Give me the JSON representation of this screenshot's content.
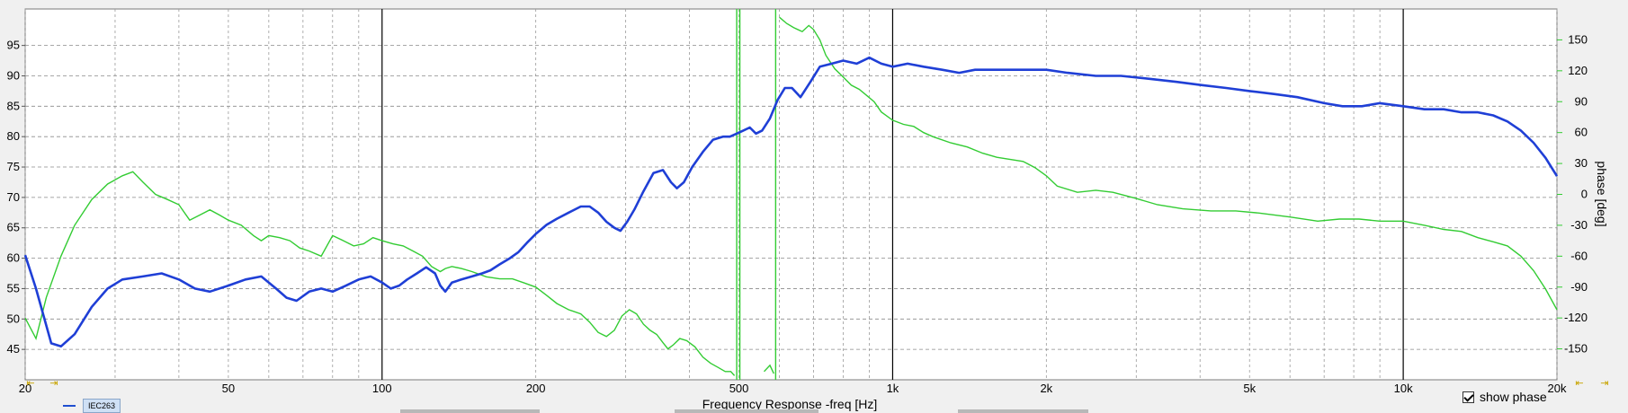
{
  "chart_data": {
    "type": "line",
    "xscale": "log",
    "xlim": [
      20,
      20000
    ],
    "ylim_left": [
      40,
      101
    ],
    "ylim_right": [
      -180,
      180
    ],
    "grid": true,
    "xlabel": "Frequency Response -freq [Hz]",
    "ylabel_right": "phase [deg]",
    "x_ticks": [
      {
        "value": 20,
        "label": "20"
      },
      {
        "value": 50,
        "label": "50"
      },
      {
        "value": 100,
        "label": "100"
      },
      {
        "value": 200,
        "label": "200"
      },
      {
        "value": 500,
        "label": "500"
      },
      {
        "value": 1000,
        "label": "1k"
      },
      {
        "value": 2000,
        "label": "2k"
      },
      {
        "value": 5000,
        "label": "5k"
      },
      {
        "value": 10000,
        "label": "10k"
      },
      {
        "value": 20000,
        "label": "20k"
      }
    ],
    "y_ticks_left": [
      "45",
      "50",
      "55",
      "60",
      "65",
      "70",
      "75",
      "80",
      "85",
      "90",
      "95"
    ],
    "y_ticks_right": [
      "-150",
      "-120",
      "-90",
      "-60",
      "-30",
      "0",
      "30",
      "60",
      "90",
      "120",
      "150"
    ],
    "series": [
      {
        "name": "IEC263",
        "axis": "left",
        "color": "#1f3fd6",
        "points": [
          [
            20,
            60.5
          ],
          [
            21,
            55
          ],
          [
            22.5,
            46
          ],
          [
            23.5,
            45.5
          ],
          [
            25,
            47.5
          ],
          [
            27,
            52
          ],
          [
            29,
            55
          ],
          [
            31,
            56.5
          ],
          [
            34,
            57
          ],
          [
            37,
            57.5
          ],
          [
            40,
            56.5
          ],
          [
            43,
            55
          ],
          [
            46,
            54.5
          ],
          [
            50,
            55.5
          ],
          [
            54,
            56.5
          ],
          [
            58,
            57
          ],
          [
            62,
            55
          ],
          [
            65,
            53.5
          ],
          [
            68,
            53
          ],
          [
            72,
            54.5
          ],
          [
            76,
            55
          ],
          [
            80,
            54.5
          ],
          [
            85,
            55.5
          ],
          [
            90,
            56.5
          ],
          [
            95,
            57
          ],
          [
            100,
            56
          ],
          [
            104,
            55
          ],
          [
            108,
            55.5
          ],
          [
            112,
            56.5
          ],
          [
            117,
            57.5
          ],
          [
            122,
            58.5
          ],
          [
            127,
            57.5
          ],
          [
            130,
            55.5
          ],
          [
            133,
            54.5
          ],
          [
            137,
            56
          ],
          [
            143,
            56.5
          ],
          [
            150,
            57
          ],
          [
            157,
            57.5
          ],
          [
            163,
            58
          ],
          [
            170,
            59
          ],
          [
            178,
            60
          ],
          [
            185,
            61
          ],
          [
            192,
            62.5
          ],
          [
            200,
            64
          ],
          [
            210,
            65.5
          ],
          [
            220,
            66.5
          ],
          [
            232,
            67.5
          ],
          [
            245,
            68.5
          ],
          [
            255,
            68.5
          ],
          [
            265,
            67.5
          ],
          [
            275,
            66
          ],
          [
            285,
            65
          ],
          [
            293,
            64.5
          ],
          [
            302,
            66
          ],
          [
            312,
            68
          ],
          [
            325,
            71
          ],
          [
            340,
            74
          ],
          [
            355,
            74.5
          ],
          [
            368,
            72.5
          ],
          [
            378,
            71.5
          ],
          [
            390,
            72.5
          ],
          [
            405,
            75
          ],
          [
            425,
            77.5
          ],
          [
            445,
            79.5
          ],
          [
            465,
            80
          ],
          [
            480,
            80
          ],
          [
            495,
            80.5
          ],
          [
            510,
            81
          ],
          [
            525,
            81.5
          ],
          [
            540,
            80.5
          ],
          [
            555,
            81
          ],
          [
            575,
            83
          ],
          [
            595,
            86
          ],
          [
            615,
            88
          ],
          [
            635,
            88
          ],
          [
            660,
            86.5
          ],
          [
            690,
            89
          ],
          [
            720,
            91.5
          ],
          [
            760,
            92
          ],
          [
            800,
            92.5
          ],
          [
            850,
            92
          ],
          [
            900,
            93
          ],
          [
            950,
            92
          ],
          [
            1000,
            91.5
          ],
          [
            1070,
            92
          ],
          [
            1150,
            91.5
          ],
          [
            1250,
            91
          ],
          [
            1350,
            90.5
          ],
          [
            1450,
            91
          ],
          [
            1600,
            91
          ],
          [
            1800,
            91
          ],
          [
            2000,
            91
          ],
          [
            2200,
            90.5
          ],
          [
            2500,
            90
          ],
          [
            2800,
            90
          ],
          [
            3200,
            89.5
          ],
          [
            3600,
            89
          ],
          [
            4000,
            88.5
          ],
          [
            4500,
            88
          ],
          [
            5000,
            87.5
          ],
          [
            5600,
            87
          ],
          [
            6200,
            86.5
          ],
          [
            7000,
            85.5
          ],
          [
            7600,
            85
          ],
          [
            8300,
            85
          ],
          [
            9000,
            85.5
          ],
          [
            10000,
            85
          ],
          [
            11000,
            84.5
          ],
          [
            12000,
            84.5
          ],
          [
            13000,
            84
          ],
          [
            14000,
            84
          ],
          [
            15000,
            83.5
          ],
          [
            16000,
            82.5
          ],
          [
            17000,
            81
          ],
          [
            18000,
            79
          ],
          [
            19000,
            76.5
          ],
          [
            20000,
            73.5
          ]
        ]
      },
      {
        "name": "phase",
        "axis": "right",
        "color": "#33cc33",
        "points": [
          [
            20,
            -120
          ],
          [
            21,
            -140
          ],
          [
            22,
            -100
          ],
          [
            23.5,
            -60
          ],
          [
            25,
            -30
          ],
          [
            27,
            -5
          ],
          [
            29,
            10
          ],
          [
            31,
            18
          ],
          [
            32.5,
            22
          ],
          [
            34,
            12
          ],
          [
            36,
            0
          ],
          [
            38,
            -5
          ],
          [
            40,
            -10
          ],
          [
            42,
            -25
          ],
          [
            44,
            -20
          ],
          [
            46,
            -15
          ],
          [
            48,
            -20
          ],
          [
            50,
            -25
          ],
          [
            53,
            -30
          ],
          [
            56,
            -40
          ],
          [
            58,
            -45
          ],
          [
            60,
            -40
          ],
          [
            63,
            -42
          ],
          [
            66,
            -45
          ],
          [
            69,
            -52
          ],
          [
            72,
            -55
          ],
          [
            76,
            -60
          ],
          [
            80,
            -40
          ],
          [
            84,
            -45
          ],
          [
            88,
            -50
          ],
          [
            92,
            -48
          ],
          [
            96,
            -42
          ],
          [
            100,
            -45
          ],
          [
            105,
            -48
          ],
          [
            110,
            -50
          ],
          [
            115,
            -55
          ],
          [
            120,
            -60
          ],
          [
            125,
            -70
          ],
          [
            130,
            -75
          ],
          [
            133,
            -72
          ],
          [
            137,
            -70
          ],
          [
            143,
            -72
          ],
          [
            150,
            -75
          ],
          [
            160,
            -80
          ],
          [
            170,
            -82
          ],
          [
            180,
            -82
          ],
          [
            190,
            -86
          ],
          [
            200,
            -90
          ],
          [
            210,
            -98
          ],
          [
            220,
            -106
          ],
          [
            232,
            -112
          ],
          [
            245,
            -116
          ],
          [
            255,
            -124
          ],
          [
            265,
            -134
          ],
          [
            275,
            -138
          ],
          [
            285,
            -132
          ],
          [
            295,
            -118
          ],
          [
            305,
            -112
          ],
          [
            315,
            -116
          ],
          [
            325,
            -126
          ],
          [
            335,
            -132
          ],
          [
            345,
            -136
          ],
          [
            355,
            -144
          ],
          [
            363,
            -150
          ],
          [
            372,
            -146
          ],
          [
            383,
            -140
          ],
          [
            395,
            -142
          ],
          [
            410,
            -148
          ],
          [
            425,
            -158
          ],
          [
            440,
            -164
          ],
          [
            455,
            -168
          ],
          [
            470,
            -172
          ],
          [
            482,
            -172
          ],
          [
            490,
            -176
          ]
        ],
        "points_b": [
          [
            560,
            -172
          ],
          [
            575,
            -166
          ],
          [
            585,
            -174
          ]
        ],
        "points_c": [
          [
            600,
            172
          ],
          [
            620,
            166
          ],
          [
            640,
            162
          ],
          [
            665,
            158
          ],
          [
            685,
            164
          ],
          [
            700,
            160
          ],
          [
            720,
            150
          ],
          [
            740,
            135
          ],
          [
            770,
            122
          ],
          [
            800,
            114
          ],
          [
            830,
            106
          ],
          [
            860,
            102
          ],
          [
            890,
            96
          ],
          [
            920,
            90
          ],
          [
            950,
            80
          ],
          [
            1000,
            72
          ],
          [
            1050,
            68
          ],
          [
            1100,
            66
          ],
          [
            1150,
            60
          ],
          [
            1200,
            56
          ],
          [
            1300,
            50
          ],
          [
            1400,
            46
          ],
          [
            1500,
            40
          ],
          [
            1600,
            36
          ],
          [
            1800,
            32
          ],
          [
            1900,
            26
          ],
          [
            2000,
            18
          ],
          [
            2100,
            8
          ],
          [
            2300,
            2
          ],
          [
            2500,
            4
          ],
          [
            2700,
            2
          ],
          [
            3000,
            -4
          ],
          [
            3300,
            -10
          ],
          [
            3700,
            -14
          ],
          [
            4200,
            -16
          ],
          [
            4700,
            -16
          ],
          [
            5200,
            -18
          ],
          [
            6000,
            -22
          ],
          [
            6800,
            -26
          ],
          [
            7500,
            -24
          ],
          [
            8200,
            -24
          ],
          [
            9000,
            -26
          ],
          [
            10000,
            -26
          ],
          [
            11000,
            -30
          ],
          [
            12000,
            -34
          ],
          [
            13000,
            -36
          ],
          [
            14000,
            -42
          ],
          [
            15000,
            -46
          ],
          [
            16000,
            -50
          ],
          [
            17000,
            -60
          ],
          [
            18000,
            -74
          ],
          [
            19000,
            -92
          ],
          [
            20000,
            -112
          ]
        ],
        "vertical_segments": [
          495,
          502,
          590
        ]
      }
    ]
  },
  "legend": {
    "label": "IEC263"
  },
  "controls": {
    "show_phase_label": "show phase"
  }
}
